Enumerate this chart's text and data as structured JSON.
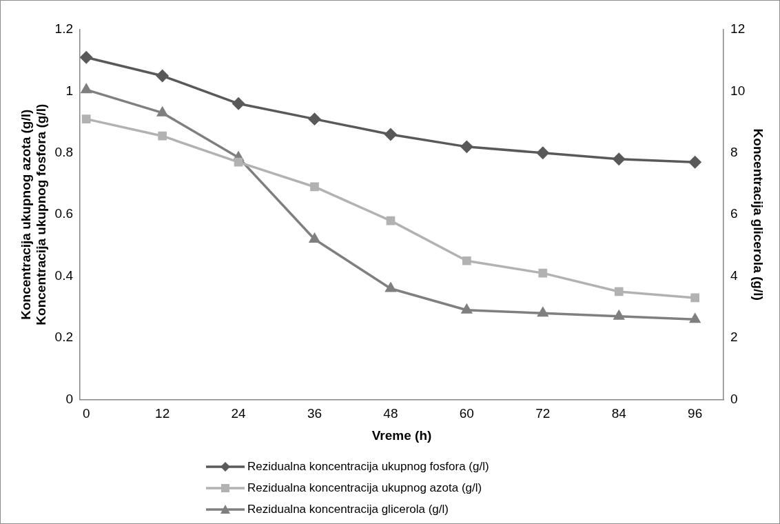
{
  "chart_data": {
    "type": "line",
    "xlabel": "Vreme (h)",
    "ylabel": "Koncentracija ukupnog azota (g/l)\nKoncentracija ukupnog fosfora (g/l)",
    "y2label": "Koncentracija glicerola (g/l)",
    "x": [
      0,
      12,
      24,
      36,
      48,
      60,
      72,
      84,
      96
    ],
    "xlim": [
      -1,
      100.5
    ],
    "xticks": [
      0,
      12,
      24,
      36,
      48,
      60,
      72,
      84,
      96
    ],
    "ylim": [
      0,
      1.2
    ],
    "yticks": [
      {
        "value": 0,
        "label": "0"
      },
      {
        "value": 0.2,
        "label": "0.2"
      },
      {
        "value": 0.4,
        "label": "0.4"
      },
      {
        "value": 0.6,
        "label": "0.6"
      },
      {
        "value": 0.8,
        "label": "0.8"
      },
      {
        "value": 1,
        "label": "1"
      },
      {
        "value": 1.2,
        "label": "1.2"
      }
    ],
    "y2lim": [
      0,
      12
    ],
    "y2ticks": [
      0,
      2,
      4,
      6,
      8,
      10,
      12
    ],
    "grid": false,
    "legend": "bottom",
    "line_style": "solid",
    "series": [
      {
        "name": "Rezidualna koncentracija ukupnog fosfora (g/l)",
        "color": "#595959",
        "marker": "diamond",
        "values": [
          1.11,
          1.05,
          0.96,
          0.91,
          0.86,
          0.82,
          0.8,
          0.78,
          0.77
        ]
      },
      {
        "name": "Rezidualna koncentracija ukupnog azota (g/l)",
        "color": "#b2b2b2",
        "marker": "square",
        "values": [
          0.91,
          0.855,
          0.77,
          0.69,
          0.58,
          0.45,
          0.41,
          0.35,
          0.33
        ]
      },
      {
        "name": "Rezidualna koncentracija glicerola (g/l)",
        "color": "#7f7f7f",
        "marker": "triangle",
        "axis": "y2",
        "values": [
          10.05,
          9.3,
          7.85,
          5.2,
          3.6,
          2.9,
          2.8,
          2.7,
          2.6
        ]
      }
    ]
  }
}
